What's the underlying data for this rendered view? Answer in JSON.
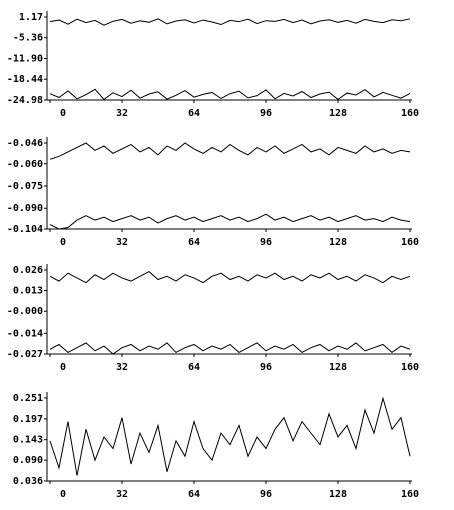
{
  "chart_data": [
    {
      "type": "line",
      "x": [
        0,
        4,
        8,
        12,
        16,
        20,
        24,
        28,
        32,
        36,
        40,
        44,
        48,
        52,
        56,
        60,
        64,
        68,
        72,
        76,
        80,
        84,
        88,
        92,
        96,
        100,
        104,
        108,
        112,
        116,
        120,
        124,
        128,
        132,
        136,
        140,
        144,
        148,
        152,
        156,
        160
      ],
      "xlim": [
        0,
        160
      ],
      "xticks": [
        0,
        32,
        64,
        96,
        128,
        160
      ],
      "ylim": [
        -24.98,
        1.17
      ],
      "yticks": [
        -24.98,
        -18.44,
        {
          "value": -11.9,
          "label": "-11.90"
        },
        -5.36,
        1.17
      ],
      "series": [
        {
          "color": "#000000",
          "values": [
            -0.3,
            0.2,
            -1.1,
            0.5,
            -0.6,
            0.1,
            -1.4,
            -0.2,
            0.4,
            -0.8,
            0.0,
            -0.5,
            0.6,
            -1.0,
            -0.1,
            0.3,
            -0.7,
            0.2,
            -0.4,
            -1.2,
            0.1,
            -0.3,
            0.5,
            -0.9,
            0.0,
            -0.2,
            0.4,
            -0.6,
            0.2,
            -1.0,
            -0.1,
            0.3,
            -0.5,
            0.1,
            -0.8,
            0.4,
            -0.2,
            -0.6,
            0.3,
            0.0,
            0.6
          ]
        },
        {
          "color": "#000000",
          "values": [
            -23.0,
            -24.2,
            -22.1,
            -24.6,
            -23.3,
            -21.6,
            -24.8,
            -22.7,
            -23.9,
            -21.9,
            -24.4,
            -23.1,
            -22.4,
            -24.7,
            -23.5,
            -22.0,
            -24.1,
            -23.2,
            -22.6,
            -24.5,
            -23.0,
            -22.2,
            -24.3,
            -23.6,
            -21.8,
            -24.6,
            -22.9,
            -23.7,
            -22.3,
            -24.2,
            -23.1,
            -22.5,
            -24.8,
            -22.8,
            -23.4,
            -21.7,
            -24.0,
            -22.6,
            -23.5,
            -24.4,
            -22.9
          ]
        }
      ]
    },
    {
      "type": "line",
      "x": [
        0,
        4,
        8,
        12,
        16,
        20,
        24,
        28,
        32,
        36,
        40,
        44,
        48,
        52,
        56,
        60,
        64,
        68,
        72,
        76,
        80,
        84,
        88,
        92,
        96,
        100,
        104,
        108,
        112,
        116,
        120,
        124,
        128,
        132,
        136,
        140,
        144,
        148,
        152,
        156,
        160
      ],
      "xlim": [
        0,
        160
      ],
      "xticks": [
        0,
        32,
        64,
        96,
        128,
        160
      ],
      "ylim": [
        -0.104,
        -0.046
      ],
      "yticks": [
        -0.104,
        {
          "value": -0.09,
          "label": "-0.090"
        },
        -0.075,
        {
          "value": -0.06,
          "label": "-0.060"
        },
        -0.046
      ],
      "series": [
        {
          "color": "#000000",
          "values": [
            -0.057,
            -0.055,
            -0.052,
            -0.049,
            -0.046,
            -0.051,
            -0.048,
            -0.053,
            -0.05,
            -0.047,
            -0.052,
            -0.049,
            -0.054,
            -0.048,
            -0.051,
            -0.046,
            -0.05,
            -0.053,
            -0.049,
            -0.052,
            -0.047,
            -0.051,
            -0.054,
            -0.049,
            -0.052,
            -0.048,
            -0.053,
            -0.05,
            -0.047,
            -0.052,
            -0.05,
            -0.054,
            -0.049,
            -0.051,
            -0.053,
            -0.048,
            -0.052,
            -0.05,
            -0.053,
            -0.051,
            -0.052
          ]
        },
        {
          "color": "#000000",
          "values": [
            -0.101,
            -0.104,
            -0.103,
            -0.098,
            -0.095,
            -0.098,
            -0.096,
            -0.099,
            -0.097,
            -0.095,
            -0.098,
            -0.096,
            -0.1,
            -0.097,
            -0.095,
            -0.098,
            -0.096,
            -0.099,
            -0.097,
            -0.095,
            -0.098,
            -0.096,
            -0.099,
            -0.097,
            -0.094,
            -0.098,
            -0.096,
            -0.099,
            -0.097,
            -0.095,
            -0.098,
            -0.096,
            -0.099,
            -0.097,
            -0.095,
            -0.098,
            -0.097,
            -0.099,
            -0.096,
            -0.098,
            -0.099
          ]
        }
      ]
    },
    {
      "type": "line",
      "x": [
        0,
        4,
        8,
        12,
        16,
        20,
        24,
        28,
        32,
        36,
        40,
        44,
        48,
        52,
        56,
        60,
        64,
        68,
        72,
        76,
        80,
        84,
        88,
        92,
        96,
        100,
        104,
        108,
        112,
        116,
        120,
        124,
        128,
        132,
        136,
        140,
        144,
        148,
        152,
        156,
        160
      ],
      "xlim": [
        0,
        160
      ],
      "xticks": [
        0,
        32,
        64,
        96,
        128,
        160
      ],
      "ylim": [
        -0.027,
        0.026
      ],
      "yticks": [
        -0.027,
        -0.014,
        {
          "value": 0,
          "label": "-0.000"
        },
        0.013,
        0.026
      ],
      "series": [
        {
          "color": "#000000",
          "values": [
            0.022,
            0.019,
            0.024,
            0.021,
            0.018,
            0.023,
            0.02,
            0.024,
            0.021,
            0.019,
            0.022,
            0.025,
            0.02,
            0.022,
            0.019,
            0.023,
            0.021,
            0.018,
            0.022,
            0.024,
            0.02,
            0.022,
            0.019,
            0.023,
            0.021,
            0.024,
            0.02,
            0.022,
            0.019,
            0.023,
            0.021,
            0.024,
            0.02,
            0.022,
            0.019,
            0.023,
            0.021,
            0.018,
            0.022,
            0.02,
            0.022
          ]
        },
        {
          "color": "#000000",
          "values": [
            -0.024,
            -0.021,
            -0.026,
            -0.023,
            -0.02,
            -0.025,
            -0.022,
            -0.027,
            -0.023,
            -0.021,
            -0.025,
            -0.022,
            -0.024,
            -0.02,
            -0.026,
            -0.023,
            -0.021,
            -0.025,
            -0.022,
            -0.024,
            -0.021,
            -0.026,
            -0.023,
            -0.02,
            -0.025,
            -0.022,
            -0.024,
            -0.021,
            -0.026,
            -0.023,
            -0.021,
            -0.025,
            -0.022,
            -0.024,
            -0.02,
            -0.025,
            -0.023,
            -0.021,
            -0.026,
            -0.022,
            -0.024
          ]
        }
      ]
    },
    {
      "type": "line",
      "x": [
        0,
        4,
        8,
        12,
        16,
        20,
        24,
        28,
        32,
        36,
        40,
        44,
        48,
        52,
        56,
        60,
        64,
        68,
        72,
        76,
        80,
        84,
        88,
        92,
        96,
        100,
        104,
        108,
        112,
        116,
        120,
        124,
        128,
        132,
        136,
        140,
        144,
        148,
        152,
        156,
        160
      ],
      "xlim": [
        0,
        160
      ],
      "xticks": [
        0,
        32,
        64,
        96,
        128,
        160
      ],
      "ylim": [
        0.036,
        0.251
      ],
      "yticks": [
        0.036,
        {
          "value": 0.09,
          "label": "0.090"
        },
        0.143,
        0.197,
        0.251
      ],
      "series": [
        {
          "color": "#000000",
          "values": [
            0.14,
            0.07,
            0.19,
            0.05,
            0.17,
            0.09,
            0.15,
            0.12,
            0.2,
            0.08,
            0.16,
            0.11,
            0.18,
            0.06,
            0.14,
            0.1,
            0.19,
            0.12,
            0.09,
            0.16,
            0.13,
            0.18,
            0.1,
            0.15,
            0.12,
            0.17,
            0.2,
            0.14,
            0.19,
            0.16,
            0.13,
            0.21,
            0.15,
            0.18,
            0.12,
            0.22,
            0.16,
            0.25,
            0.17,
            0.2,
            0.1
          ]
        }
      ]
    }
  ]
}
